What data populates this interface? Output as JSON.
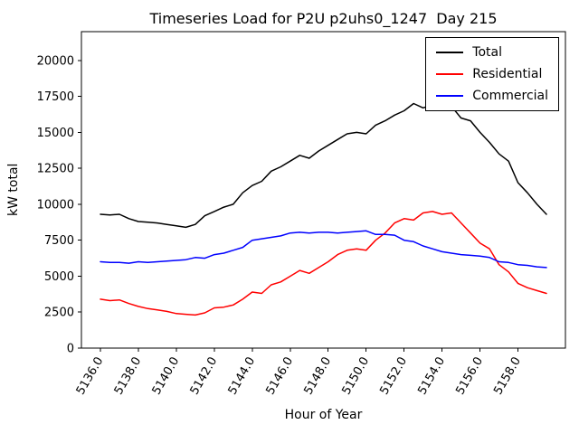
{
  "chart_data": {
    "type": "line",
    "title": "Timeseries Load for P2U p2uhs0_1247  Day 215",
    "xlabel": "Hour of Year",
    "ylabel": "kW total",
    "xlim": [
      5135.0,
      5160.5
    ],
    "ylim": [
      0,
      22000
    ],
    "grid": false,
    "legend_position": "upper right",
    "x_ticks": [
      5136,
      5138,
      5140,
      5142,
      5144,
      5146,
      5148,
      5150,
      5152,
      5154,
      5156,
      5158
    ],
    "x_tick_labels": [
      "5136.0",
      "5138.0",
      "5140.0",
      "5142.0",
      "5144.0",
      "5146.0",
      "5148.0",
      "5150.0",
      "5152.0",
      "5154.0",
      "5156.0",
      "5158.0"
    ],
    "y_ticks": [
      0,
      2500,
      5000,
      7500,
      10000,
      12500,
      15000,
      17500,
      20000
    ],
    "y_tick_labels": [
      "0",
      "2500",
      "5000",
      "7500",
      "10000",
      "12500",
      "15000",
      "17500",
      "20000"
    ],
    "x": [
      5136.0,
      5136.5,
      5137.0,
      5137.5,
      5138.0,
      5138.5,
      5139.0,
      5139.5,
      5140.0,
      5140.5,
      5141.0,
      5141.5,
      5142.0,
      5142.5,
      5143.0,
      5143.5,
      5144.0,
      5144.5,
      5145.0,
      5145.5,
      5146.0,
      5146.5,
      5147.0,
      5147.5,
      5148.0,
      5148.5,
      5149.0,
      5149.5,
      5150.0,
      5150.5,
      5151.0,
      5151.5,
      5152.0,
      5152.5,
      5153.0,
      5153.5,
      5154.0,
      5154.5,
      5155.0,
      5155.5,
      5156.0,
      5156.5,
      5157.0,
      5157.5,
      5158.0,
      5158.5,
      5159.0,
      5159.5
    ],
    "series": [
      {
        "name": "Total",
        "color": "#000000",
        "values": [
          9300,
          9250,
          9300,
          9000,
          8800,
          8750,
          8700,
          8600,
          8500,
          8400,
          8600,
          9200,
          9500,
          9800,
          10000,
          10800,
          11300,
          11600,
          12300,
          12600,
          13000,
          13400,
          13200,
          13700,
          14100,
          14500,
          14900,
          15000,
          14900,
          15500,
          15800,
          16200,
          16500,
          17000,
          16700,
          16900,
          16700,
          16800,
          16000,
          15800,
          15000,
          14300,
          13500,
          13000,
          11500,
          10800,
          10000,
          9300
        ]
      },
      {
        "name": "Residential",
        "color": "#ff0000",
        "values": [
          3400,
          3300,
          3350,
          3100,
          2900,
          2750,
          2650,
          2550,
          2400,
          2350,
          2300,
          2450,
          2800,
          2850,
          3000,
          3400,
          3900,
          3800,
          4400,
          4600,
          5000,
          5400,
          5200,
          5600,
          6000,
          6500,
          6800,
          6900,
          6800,
          7500,
          8000,
          8700,
          9000,
          8900,
          9400,
          9500,
          9300,
          9400,
          8700,
          8000,
          7300,
          6900,
          5800,
          5300,
          4500,
          4200,
          4000,
          3800
        ]
      },
      {
        "name": "Commercial",
        "color": "#0000ff",
        "values": [
          6000,
          5950,
          5950,
          5900,
          6000,
          5950,
          6000,
          6050,
          6100,
          6150,
          6300,
          6250,
          6500,
          6600,
          6800,
          7000,
          7500,
          7600,
          7700,
          7800,
          8000,
          8050,
          8000,
          8050,
          8050,
          8000,
          8050,
          8100,
          8150,
          7900,
          7900,
          7850,
          7500,
          7400,
          7100,
          6900,
          6700,
          6600,
          6500,
          6450,
          6400,
          6300,
          6000,
          5950,
          5800,
          5750,
          5650,
          5600
        ]
      }
    ]
  }
}
